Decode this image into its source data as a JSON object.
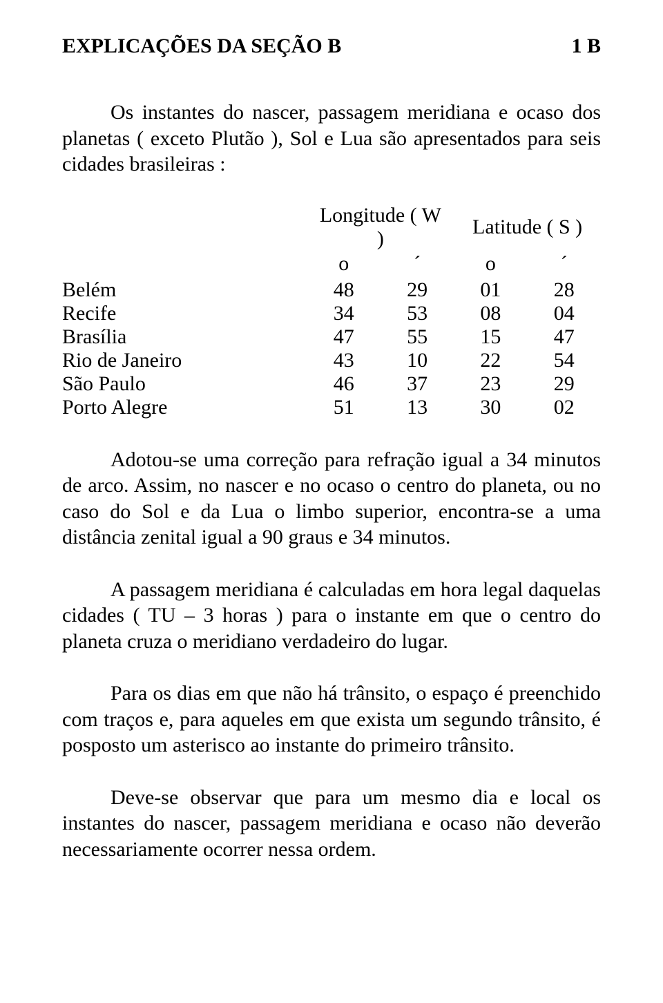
{
  "header": {
    "title": "EXPLICAÇÕES DA SEÇÃO B",
    "page_label": "1 B"
  },
  "intro": "Os instantes do nascer, passagem meridiana e ocaso dos planetas ( exceto Plutão ), Sol e Lua são apresentados para seis cidades brasileiras :",
  "table": {
    "col_headers": {
      "lon": "Longitude ( W )",
      "lat": "Latitude ( S )"
    },
    "unit_row": {
      "deg": "o",
      "min": "´"
    },
    "rows": [
      {
        "city": "Belém",
        "lon_deg": "48",
        "lon_min": "29",
        "lat_deg": "01",
        "lat_min": "28"
      },
      {
        "city": "Recife",
        "lon_deg": "34",
        "lon_min": "53",
        "lat_deg": "08",
        "lat_min": "04"
      },
      {
        "city": "Brasília",
        "lon_deg": "47",
        "lon_min": "55",
        "lat_deg": "15",
        "lat_min": "47"
      },
      {
        "city": "Rio de Janeiro",
        "lon_deg": "43",
        "lon_min": "10",
        "lat_deg": "22",
        "lat_min": "54"
      },
      {
        "city": "São Paulo",
        "lon_deg": "46",
        "lon_min": "37",
        "lat_deg": "23",
        "lat_min": "29"
      },
      {
        "city": "Porto Alegre",
        "lon_deg": "51",
        "lon_min": "13",
        "lat_deg": "30",
        "lat_min": "02"
      }
    ]
  },
  "paragraphs": {
    "p1": "Adotou-se uma correção para refração igual a 34 minutos de arco. Assim, no nascer e no ocaso o centro do planeta, ou no caso do Sol e da Lua o limbo superior, encontra-se a uma distância zenital igual a 90 graus e 34 minutos.",
    "p2": "A passagem meridiana é calculadas em hora legal daquelas cidades ( TU – 3 horas ) para o instante em que o centro do planeta cruza o meridiano verdadeiro do lugar.",
    "p3": "Para os dias em que não há trânsito, o espaço é preenchido com traços e, para aqueles em que exista um segundo trânsito, é posposto um asterisco ao instante do primeiro trânsito.",
    "p4": "Deve-se observar que para um mesmo dia e local os instantes do nascer, passagem meridiana e ocaso não deverão necessariamente ocorrer nessa ordem."
  }
}
